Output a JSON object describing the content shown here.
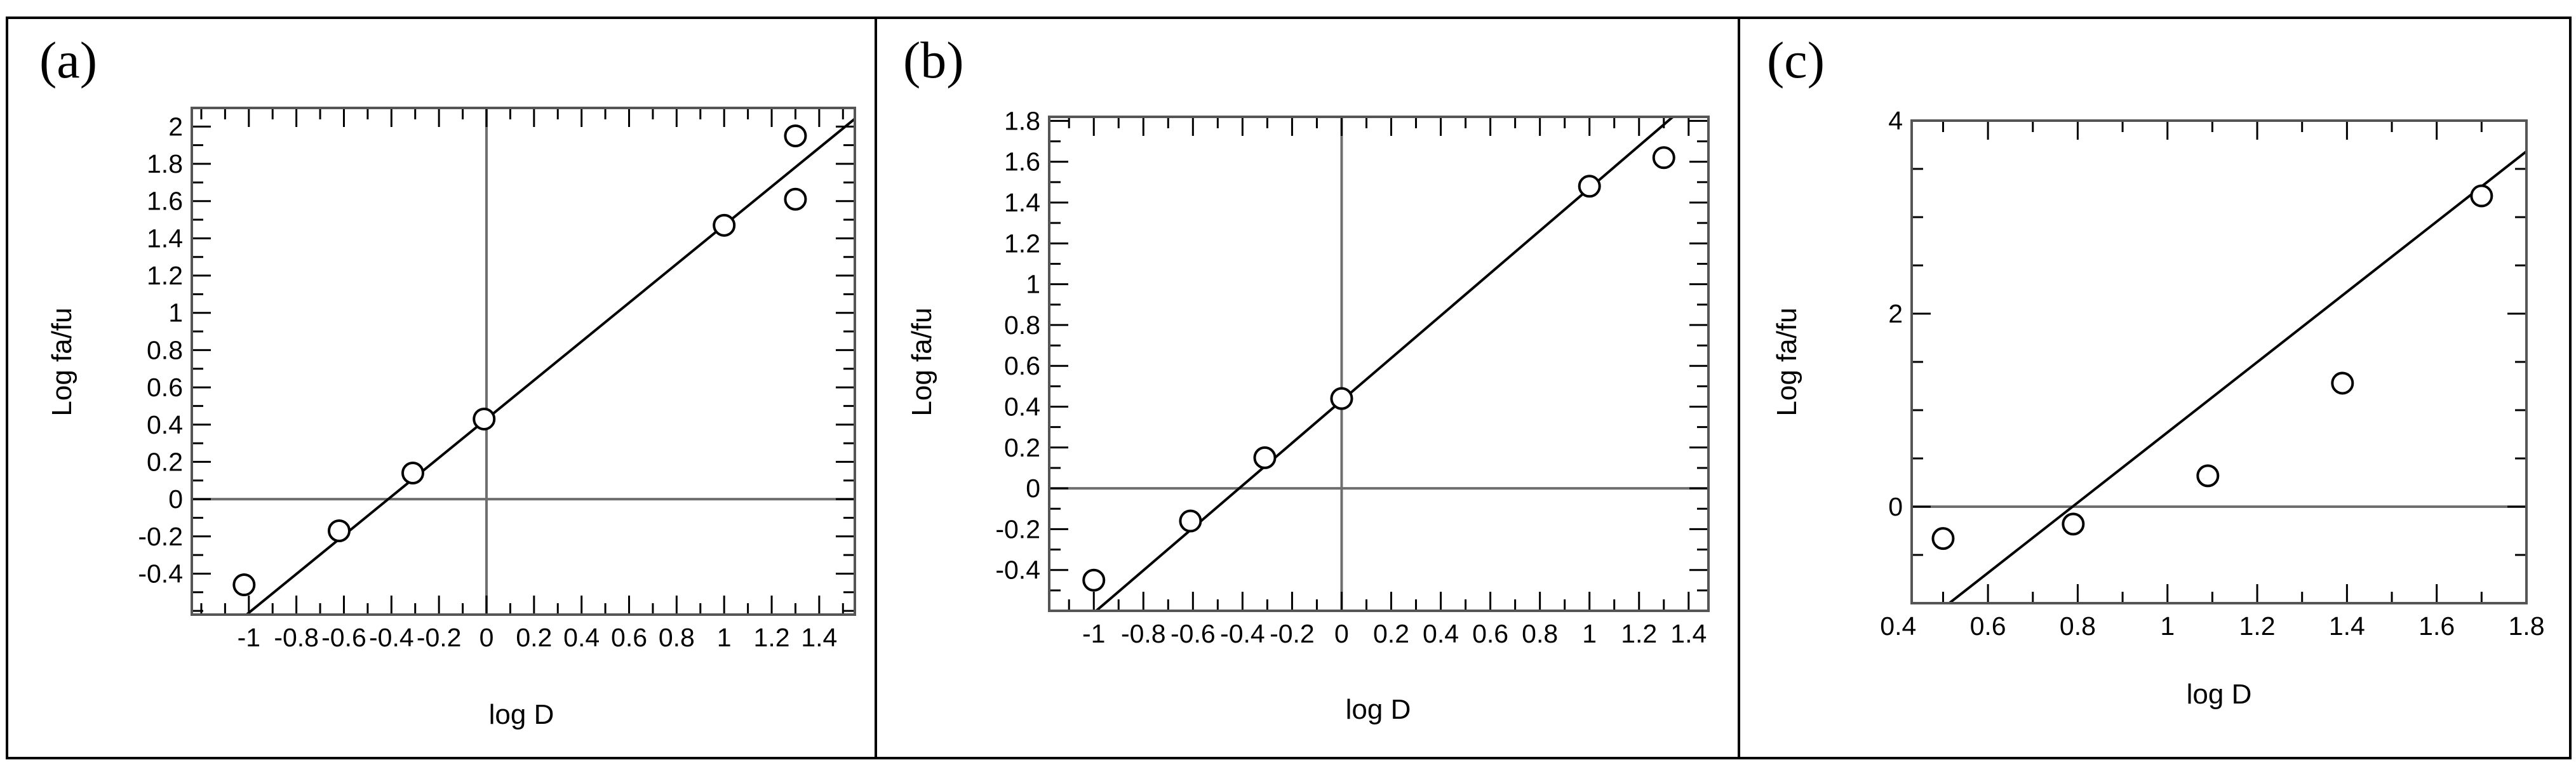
{
  "chart_data": [
    {
      "type": "scatter",
      "panel_label": "(a)",
      "xlabel": "log D",
      "ylabel": "Log fa/fu",
      "xlim": [
        -1.24,
        1.55
      ],
      "ylim": [
        -0.62,
        2.1
      ],
      "xticks": [
        -1,
        -0.8,
        -0.6,
        -0.4,
        -0.2,
        0,
        0.2,
        0.4,
        0.6,
        0.8,
        1,
        1.2,
        1.4
      ],
      "xtick_labels": [
        "-1",
        "-0.8",
        "-0.6",
        "-0.4",
        "-0.2",
        "0",
        "0.2",
        "0.4",
        "0.6",
        "0.8",
        "1",
        "1.2",
        "1.4"
      ],
      "yticks": [
        -0.4,
        -0.2,
        0,
        0.2,
        0.4,
        0.6,
        0.8,
        1,
        1.2,
        1.4,
        1.6,
        1.8,
        2
      ],
      "ytick_labels": [
        "-0.4",
        "-0.2",
        "0",
        "0.2",
        "0.4",
        "0.6",
        "0.8",
        "1",
        "1.2",
        "1.4",
        "1.6",
        "1.8",
        "2"
      ],
      "x_minor_step": 0.1,
      "y_minor_step": 0.1,
      "zero_lines": {
        "x": 0,
        "y": 0
      },
      "grid": false,
      "series": [
        {
          "marker": "open-circle",
          "x": [
            -1.02,
            -0.62,
            -0.31,
            -0.01,
            1.0,
            1.3,
            1.3
          ],
          "y": [
            -0.46,
            -0.17,
            0.14,
            0.43,
            1.47,
            1.95,
            1.61
          ]
        }
      ],
      "fit_line": {
        "slope": 1.04,
        "intercept": 0.43
      }
    },
    {
      "type": "scatter",
      "panel_label": "(b)",
      "xlabel": "log D",
      "ylabel": "Log fa/fu",
      "xlim": [
        -1.18,
        1.48
      ],
      "ylim": [
        -0.6,
        1.82
      ],
      "xticks": [
        -1,
        -0.8,
        -0.6,
        -0.4,
        -0.2,
        0,
        0.2,
        0.4,
        0.6,
        0.8,
        1,
        1.2,
        1.4
      ],
      "xtick_labels": [
        "-1",
        "-0.8",
        "-0.6",
        "-0.4",
        "-0.2",
        "0",
        "0.2",
        "0.4",
        "0.6",
        "0.8",
        "1",
        "1.2",
        "1.4"
      ],
      "yticks": [
        -0.4,
        -0.2,
        0,
        0.2,
        0.4,
        0.6,
        0.8,
        1,
        1.2,
        1.4,
        1.6,
        1.8
      ],
      "ytick_labels": [
        "-0.4",
        "-0.2",
        "0",
        "0.2",
        "0.4",
        "0.6",
        "0.8",
        "1",
        "1.2",
        "1.4",
        "1.6",
        "1.8"
      ],
      "x_minor_step": 0.1,
      "y_minor_step": 0.1,
      "zero_lines": {
        "x": 0,
        "y": 0
      },
      "grid": false,
      "series": [
        {
          "marker": "open-circle",
          "x": [
            -1.0,
            -0.61,
            -0.31,
            0.0,
            1.0,
            1.3
          ],
          "y": [
            -0.45,
            -0.16,
            0.15,
            0.44,
            1.48,
            1.62
          ]
        }
      ],
      "fit_line": {
        "slope": 1.04,
        "intercept": 0.43
      }
    },
    {
      "type": "scatter",
      "panel_label": "(c)",
      "xlabel": "log D",
      "ylabel": "Log fa/fu",
      "xlim": [
        0.43,
        1.8
      ],
      "ylim": [
        -1.0,
        4.0
      ],
      "xticks": [
        0.4,
        0.6,
        0.8,
        1,
        1.2,
        1.4,
        1.6,
        1.8
      ],
      "xtick_labels": [
        "0.4",
        "0.6",
        "0.8",
        "1",
        "1.2",
        "1.4",
        "1.6",
        "1.8"
      ],
      "yticks": [
        0,
        2,
        4
      ],
      "ytick_labels": [
        "0",
        "2",
        "4"
      ],
      "x_minor_step": 0.1,
      "y_minor_step": 0.5,
      "zero_lines": {
        "y": 0
      },
      "grid": false,
      "series": [
        {
          "marker": "open-circle",
          "x": [
            0.5,
            0.79,
            1.09,
            1.39,
            1.7
          ],
          "y": [
            -0.33,
            -0.18,
            0.32,
            1.28,
            3.22
          ]
        }
      ],
      "fit_line": {
        "slope": 3.64,
        "intercept": -2.87
      }
    }
  ]
}
